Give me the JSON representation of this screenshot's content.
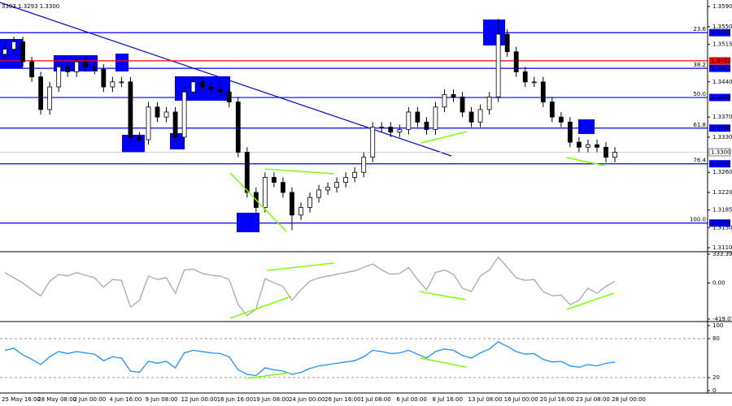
{
  "chart_data": [
    {
      "type": "candlestick",
      "header": "3303 1.3293 1.3300",
      "categories": [
        "25 May 16:00",
        null,
        null,
        null,
        "28 May 08:00",
        null,
        null,
        null,
        "2 Jun 00:00",
        null,
        null,
        null,
        "4 Jun 16:00",
        null,
        null,
        null,
        "9 Jun 08:00",
        null,
        null,
        null,
        "12 Jun 00:00",
        null,
        null,
        null,
        "16 Jun 16:00",
        null,
        null,
        null,
        "19 Jun 08:00",
        null,
        null,
        null,
        "24 Jun 00:00",
        null,
        null,
        null,
        "26 Jun 16:00",
        null,
        null,
        null,
        "1 Jul 08:00",
        null,
        null,
        null,
        "6 Jul 00:00",
        null,
        null,
        null,
        "8 Jul 16:00",
        null,
        null,
        null,
        "13 Jul 08:00",
        null,
        null,
        null,
        "16 Jul 00:00",
        null,
        null,
        null,
        "20 Jul 16:00",
        null,
        null,
        null,
        "23 Jul 08:00",
        null,
        null,
        null,
        "28 Jul 00:00"
      ],
      "open": [
        1.3495,
        1.3505,
        1.352,
        1.348,
        1.345,
        1.3385,
        1.343,
        1.347,
        1.346,
        1.348,
        1.347,
        1.3465,
        1.343,
        1.344,
        1.344,
        1.333,
        1.3325,
        1.339,
        1.337,
        1.338,
        1.333,
        1.342,
        1.344,
        1.343,
        1.3425,
        1.342,
        1.34,
        1.33,
        1.322,
        1.319,
        1.325,
        1.324,
        1.322,
        1.3175,
        1.319,
        1.321,
        1.3225,
        1.323,
        1.324,
        1.325,
        1.326,
        1.329,
        1.335,
        1.335,
        1.334,
        1.3345,
        1.338,
        1.336,
        1.3345,
        1.339,
        1.3415,
        1.341,
        1.338,
        1.336,
        1.3385,
        1.341,
        1.3535,
        1.35,
        1.346,
        1.344,
        1.344,
        1.34,
        1.337,
        1.336,
        1.332,
        1.331,
        1.3315,
        1.331,
        1.329
      ],
      "high": [
        1.3515,
        1.353,
        1.353,
        1.349,
        1.346,
        1.344,
        1.348,
        1.348,
        1.349,
        1.349,
        1.348,
        1.3475,
        1.345,
        1.345,
        1.345,
        1.334,
        1.34,
        1.34,
        1.339,
        1.339,
        1.343,
        1.345,
        1.345,
        1.344,
        1.3435,
        1.343,
        1.341,
        1.331,
        1.323,
        1.326,
        1.326,
        1.325,
        1.323,
        1.32,
        1.322,
        1.3235,
        1.324,
        1.325,
        1.326,
        1.327,
        1.33,
        1.336,
        1.336,
        1.336,
        1.3355,
        1.339,
        1.339,
        1.337,
        1.34,
        1.3425,
        1.3425,
        1.342,
        1.339,
        1.3395,
        1.342,
        1.3565,
        1.3545,
        1.351,
        1.347,
        1.345,
        1.345,
        1.341,
        1.338,
        1.337,
        1.333,
        1.3325,
        1.3325,
        1.332,
        1.331
      ],
      "low": [
        1.3485,
        1.3495,
        1.347,
        1.344,
        1.3375,
        1.3375,
        1.342,
        1.345,
        1.345,
        1.346,
        1.3455,
        1.342,
        1.342,
        1.343,
        1.332,
        1.3315,
        1.3315,
        1.336,
        1.336,
        1.332,
        1.332,
        1.341,
        1.342,
        1.3415,
        1.341,
        1.339,
        1.329,
        1.321,
        1.318,
        1.318,
        1.323,
        1.321,
        1.3145,
        1.3165,
        1.318,
        1.32,
        1.3215,
        1.322,
        1.323,
        1.324,
        1.325,
        1.328,
        1.334,
        1.333,
        1.333,
        1.3335,
        1.335,
        1.3335,
        1.3335,
        1.338,
        1.34,
        1.337,
        1.335,
        1.335,
        1.3375,
        1.34,
        1.349,
        1.345,
        1.343,
        1.343,
        1.339,
        1.336,
        1.335,
        1.331,
        1.33,
        1.33,
        1.33,
        1.328,
        1.328
      ],
      "close": [
        1.3505,
        1.352,
        1.348,
        1.345,
        1.3385,
        1.343,
        1.347,
        1.346,
        1.348,
        1.347,
        1.3465,
        1.343,
        1.344,
        1.344,
        1.333,
        1.3325,
        1.339,
        1.337,
        1.338,
        1.333,
        1.342,
        1.344,
        1.343,
        1.3425,
        1.342,
        1.34,
        1.33,
        1.322,
        1.319,
        1.325,
        1.324,
        1.322,
        1.3175,
        1.319,
        1.321,
        1.3225,
        1.323,
        1.324,
        1.325,
        1.326,
        1.329,
        1.335,
        1.335,
        1.334,
        1.3345,
        1.338,
        1.336,
        1.3345,
        1.339,
        1.3415,
        1.341,
        1.338,
        1.336,
        1.3385,
        1.341,
        1.3535,
        1.35,
        1.346,
        1.344,
        1.344,
        1.34,
        1.337,
        1.336,
        1.332,
        1.331,
        1.3315,
        1.331,
        1.329,
        1.33
      ],
      "ylim": [
        1.3102,
        1.3603
      ],
      "yticks": [
        {
          "value": 1.359,
          "label": "1.3590"
        },
        {
          "value": 1.355,
          "label": "1.3550"
        },
        1.3515,
        {
          "value": 1.344,
          "label": "1.3440"
        },
        {
          "value": 1.337,
          "label": "1.3370"
        },
        {
          "value": 1.333,
          "label": "1.3330"
        },
        {
          "value": 1.326,
          "label": "1.3260"
        },
        {
          "value": 1.322,
          "label": "1.3220"
        },
        1.3185,
        {
          "value": 1.315,
          "label": "1.3150"
        },
        {
          "value": 1.311,
          "label": "1.3110"
        }
      ],
      "levels": [
        {
          "value": 1.3538,
          "fib": "23.6",
          "color": "#0000ff"
        },
        {
          "value": 1.3482,
          "color": "#ff0000"
        },
        {
          "value": 1.3467,
          "fib": "38.2",
          "color": "#0000ff"
        },
        {
          "value": 1.3409,
          "fib": "50.0",
          "color": "#0000ff"
        },
        {
          "value": 1.3348,
          "fib": "61.8",
          "color": "#0000ff"
        },
        {
          "value": 1.33,
          "label": "1.3300",
          "color": "#c0c0c0"
        },
        {
          "value": 1.3277,
          "fib": "76.4",
          "color": "#0000ff"
        },
        {
          "value": 1.3159,
          "fib": "100.0",
          "color": "#0000ff"
        }
      ]
    },
    {
      "type": "line",
      "series": [
        {
          "color": "#a9a9a9",
          "values": [
            120,
            60,
            0,
            -80,
            -150,
            20,
            100,
            80,
            120,
            90,
            60,
            -50,
            40,
            30,
            -280,
            -200,
            80,
            40,
            60,
            -120,
            150,
            160,
            110,
            90,
            80,
            40,
            -250,
            -380,
            -300,
            50,
            0,
            -40,
            -200,
            -80,
            20,
            60,
            80,
            100,
            120,
            140,
            180,
            220,
            150,
            100,
            110,
            180,
            40,
            -80,
            120,
            150,
            100,
            -60,
            -100,
            80,
            150,
            300,
            180,
            60,
            30,
            40,
            -100,
            -150,
            -140,
            -250,
            -200,
            -60,
            -120,
            -40,
            20
          ]
        }
      ],
      "ylim": [
        -419.071,
        333.3997
      ],
      "yticks": [
        333.3997,
        {
          "value": 0,
          "label": "0.00"
        },
        -419.071
      ]
    },
    {
      "type": "line",
      "series": [
        {
          "color": "#1e90ff",
          "values": [
            62,
            65,
            55,
            48,
            40,
            52,
            60,
            57,
            60,
            58,
            56,
            46,
            52,
            50,
            30,
            28,
            45,
            42,
            45,
            35,
            58,
            62,
            60,
            58,
            57,
            52,
            32,
            25,
            23,
            35,
            32,
            30,
            25,
            28,
            34,
            38,
            40,
            42,
            44,
            46,
            52,
            62,
            60,
            57,
            58,
            62,
            56,
            50,
            60,
            64,
            62,
            54,
            50,
            58,
            64,
            75,
            68,
            60,
            56,
            57,
            48,
            44,
            45,
            38,
            36,
            40,
            38,
            42,
            44
          ]
        }
      ],
      "ylim": [
        0,
        100
      ],
      "yticks": [
        100,
        80,
        20,
        0
      ]
    }
  ]
}
